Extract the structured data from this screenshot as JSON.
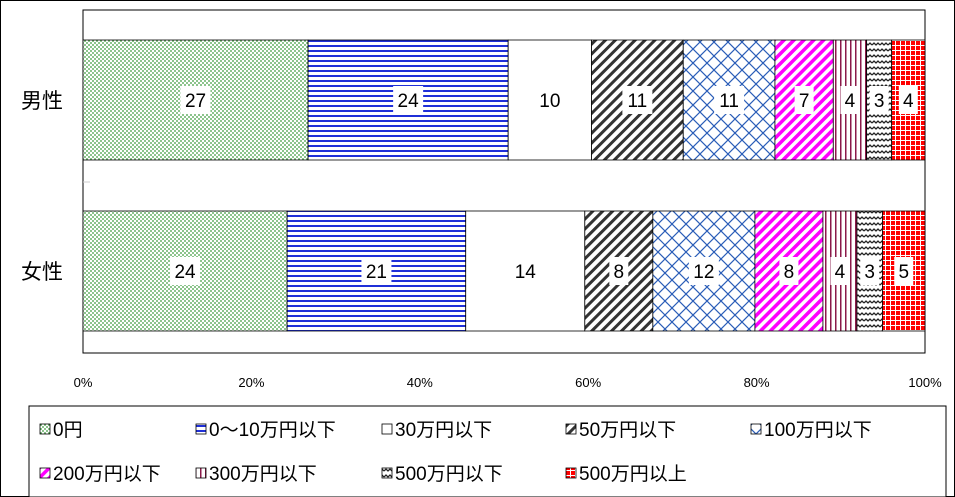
{
  "chart_data": {
    "type": "bar",
    "orientation": "horizontal",
    "stacked": "percent",
    "categories": [
      "男性",
      "女性"
    ],
    "series": [
      {
        "name": "0円",
        "values": [
          27,
          24
        ],
        "color": "#3a9a3a",
        "pattern": "dots"
      },
      {
        "name": "0～10万円以下",
        "values": [
          24,
          21
        ],
        "color": "#1f2fd8",
        "pattern": "hlines"
      },
      {
        "name": "30万円以下",
        "values": [
          10,
          14
        ],
        "color": "#ffffff",
        "pattern": "none"
      },
      {
        "name": "50万円以下",
        "values": [
          11,
          8
        ],
        "color": "#333333",
        "pattern": "diag"
      },
      {
        "name": "100万円以下",
        "values": [
          11,
          12
        ],
        "color": "#2a5db8",
        "pattern": "crosshatch"
      },
      {
        "name": "200万円以下",
        "values": [
          7,
          8
        ],
        "color": "#ff00ff",
        "pattern": "diag"
      },
      {
        "name": "300万円以下",
        "values": [
          4,
          4
        ],
        "color": "#8b1a4a",
        "pattern": "vlines"
      },
      {
        "name": "500万円以下",
        "values": [
          3,
          3
        ],
        "color": "#222222",
        "pattern": "waves"
      },
      {
        "name": "500万円以上",
        "values": [
          4,
          5
        ],
        "color": "#ff0000",
        "pattern": "grid"
      }
    ],
    "x_ticks": [
      "0%",
      "20%",
      "40%",
      "60%",
      "80%",
      "100%"
    ],
    "xlim": [
      0,
      100
    ],
    "legend_position": "bottom",
    "grid": false
  }
}
